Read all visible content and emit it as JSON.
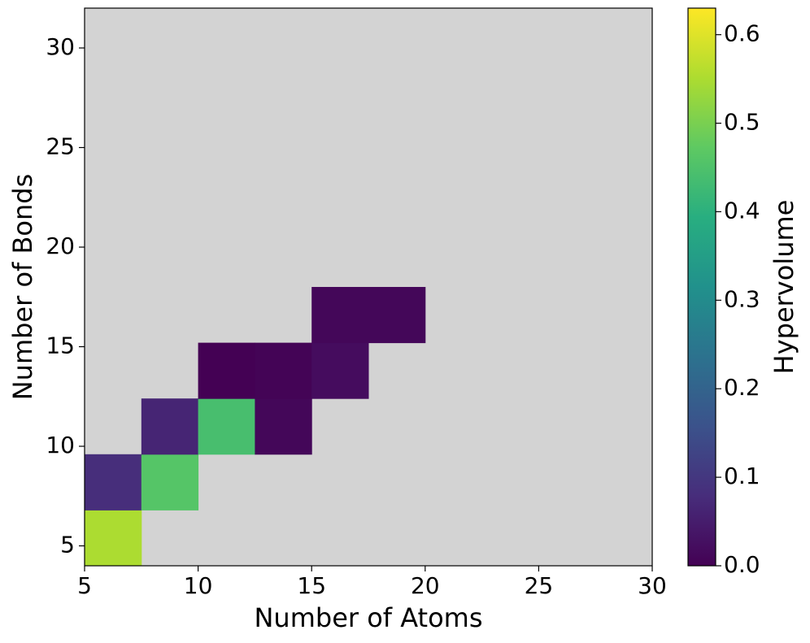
{
  "chart_data": {
    "type": "heatmap",
    "xlabel": "Number of Atoms",
    "ylabel": "Number of Bonds",
    "colorbar_label": "Hypervolume",
    "xbins": [
      5,
      7.5,
      10,
      12.5,
      15,
      17.5,
      20,
      22.5,
      25,
      27.5,
      30
    ],
    "ybins": [
      4,
      6.8,
      9.6,
      12.4,
      15.2,
      18,
      20.8,
      23.6,
      26.4,
      29.2,
      32
    ],
    "values": [
      [
        0.55,
        null,
        null,
        null,
        null,
        null,
        null,
        null,
        null,
        null
      ],
      [
        0.08,
        0.46,
        null,
        null,
        null,
        null,
        null,
        null,
        null,
        null
      ],
      [
        null,
        0.065,
        0.44,
        0.01,
        null,
        null,
        null,
        null,
        null,
        null
      ],
      [
        null,
        null,
        0.0,
        0.005,
        0.02,
        null,
        null,
        null,
        null,
        null
      ],
      [
        null,
        null,
        null,
        null,
        0.01,
        0.01,
        null,
        null,
        null,
        null
      ],
      [
        null,
        null,
        null,
        null,
        null,
        null,
        null,
        null,
        null,
        null
      ],
      [
        null,
        null,
        null,
        null,
        null,
        null,
        null,
        null,
        null,
        null
      ],
      [
        null,
        null,
        null,
        null,
        null,
        null,
        null,
        null,
        null,
        null
      ],
      [
        null,
        null,
        null,
        null,
        null,
        null,
        null,
        null,
        null,
        null
      ],
      [
        null,
        null,
        null,
        null,
        null,
        null,
        null,
        null,
        null,
        null
      ]
    ],
    "xlim": [
      5,
      30
    ],
    "ylim": [
      4,
      32
    ],
    "xticks": [
      5,
      10,
      15,
      20,
      25,
      30
    ],
    "yticks": [
      5,
      10,
      15,
      20,
      25,
      30
    ],
    "colormap": "viridis",
    "clim": [
      0,
      0.63
    ],
    "cticks": [
      {
        "value": 0,
        "label": "0.0"
      },
      0.1,
      0.2,
      0.3,
      0.4,
      0.5,
      0.6
    ],
    "background_color": "#d3d3d3"
  }
}
